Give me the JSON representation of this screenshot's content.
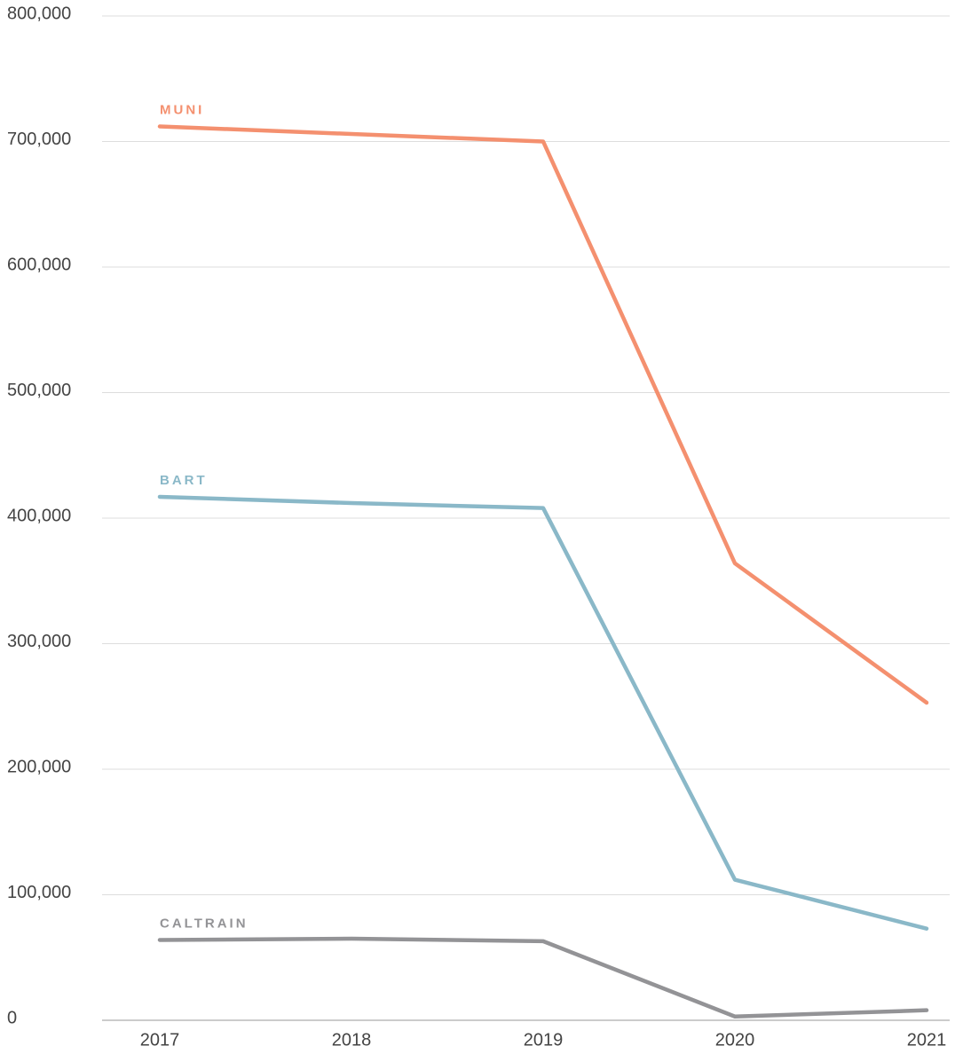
{
  "chart_data": {
    "type": "line",
    "categories": [
      "2017",
      "2018",
      "2019",
      "2020",
      "2021"
    ],
    "series": [
      {
        "name": "MUNI",
        "color": "#f4906f",
        "values": [
          712000,
          706000,
          700000,
          364000,
          253000
        ]
      },
      {
        "name": "BART",
        "color": "#8ab8c8",
        "values": [
          417000,
          412000,
          408000,
          112000,
          73000
        ]
      },
      {
        "name": "CALTRAIN",
        "color": "#939396",
        "values": [
          64000,
          65000,
          63000,
          3000,
          8000
        ]
      }
    ],
    "ylim": [
      0,
      800000
    ],
    "yticks": [
      0,
      {
        "value": 100000,
        "label": "100,000"
      },
      {
        "value": 200000,
        "label": "200,000"
      },
      {
        "value": 300000,
        "label": "300,000"
      },
      {
        "value": 400000,
        "label": "400,000"
      },
      {
        "value": 500000,
        "label": "500,000"
      },
      {
        "value": 600000,
        "label": "600,000"
      },
      {
        "value": 700000,
        "label": "700,000"
      },
      {
        "value": 800000,
        "label": "800,000"
      }
    ],
    "grid": true
  }
}
